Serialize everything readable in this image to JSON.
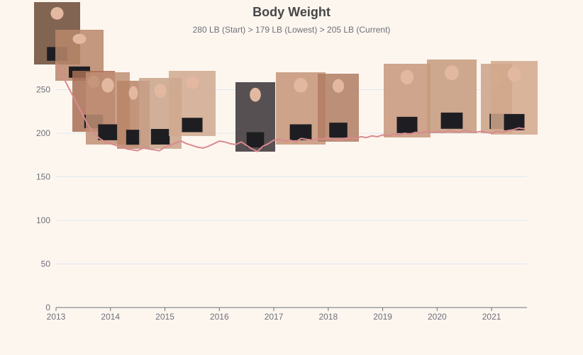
{
  "chart": {
    "title": "Body Weight",
    "subtitle": "280 LB (Start) > 179 LB (Lowest) > 205 LB (Current)"
  },
  "chart_data": {
    "type": "line",
    "title": "Body Weight",
    "subtitle": "280 LB (Start) > 179 LB (Lowest) > 205 LB (Current)",
    "xlabel": "",
    "ylabel": "",
    "xlim": [
      2013.0,
      2021.65
    ],
    "ylim": [
      0,
      300
    ],
    "x_ticks": [
      "2013",
      "2014",
      "2015",
      "2016",
      "2017",
      "2018",
      "2019",
      "2020",
      "2021"
    ],
    "y_ticks": [
      0,
      50,
      100,
      150,
      200,
      250
    ],
    "grid": true,
    "legend": "none",
    "line_color": "#d98a8f",
    "series": [
      {
        "x": [
          2013.0,
          2013.05,
          2013.1,
          2013.15,
          2013.2,
          2013.25,
          2013.3,
          2013.35,
          2013.4,
          2013.45,
          2013.5,
          2013.55,
          2013.6,
          2013.7,
          2013.8,
          2013.9,
          2014.0,
          2014.1,
          2014.2,
          2014.3,
          2014.4,
          2014.5,
          2014.6,
          2014.7,
          2014.8,
          2014.9,
          2015.0,
          2015.1,
          2015.2,
          2015.3,
          2015.4,
          2015.5,
          2015.6,
          2015.7,
          2015.8,
          2015.9,
          2016.0,
          2016.1,
          2016.2,
          2016.3,
          2016.4,
          2016.5,
          2016.6,
          2016.7,
          2016.8,
          2016.9,
          2017.0,
          2017.1,
          2017.2,
          2017.3,
          2017.4,
          2017.5,
          2017.6,
          2017.7,
          2017.8,
          2017.9,
          2018.0,
          2018.1,
          2018.2,
          2018.3,
          2018.4,
          2018.5,
          2018.6,
          2018.7,
          2018.8,
          2018.9,
          2019.0,
          2019.1,
          2019.2,
          2019.3,
          2019.4,
          2019.5,
          2019.6,
          2019.7,
          2019.8,
          2019.9,
          2020.0,
          2020.1,
          2020.2,
          2020.3,
          2020.4,
          2020.5,
          2020.6,
          2020.7,
          2020.8,
          2020.9,
          2021.0,
          2021.1,
          2021.2,
          2021.3,
          2021.4,
          2021.5,
          2021.6
        ],
        "y": [
          280,
          275,
          268,
          262,
          256,
          250,
          244,
          238,
          232,
          226,
          220,
          214,
          208,
          200,
          194,
          190,
          188,
          186,
          184,
          182,
          181,
          180,
          183,
          182,
          181,
          180,
          184,
          186,
          189,
          191,
          188,
          186,
          184,
          183,
          185,
          188,
          191,
          190,
          188,
          187,
          190,
          186,
          182,
          179,
          185,
          188,
          192,
          193,
          191,
          192,
          190,
          194,
          193,
          192,
          194,
          193,
          195,
          193,
          192,
          194,
          195,
          194,
          196,
          195,
          197,
          196,
          198,
          197,
          199,
          198,
          200,
          199,
          201,
          200,
          202,
          201,
          202,
          201,
          203,
          202,
          201,
          203,
          202,
          201,
          202,
          201,
          200,
          202,
          201,
          203,
          204,
          206,
          205
        ]
      }
    ]
  }
}
